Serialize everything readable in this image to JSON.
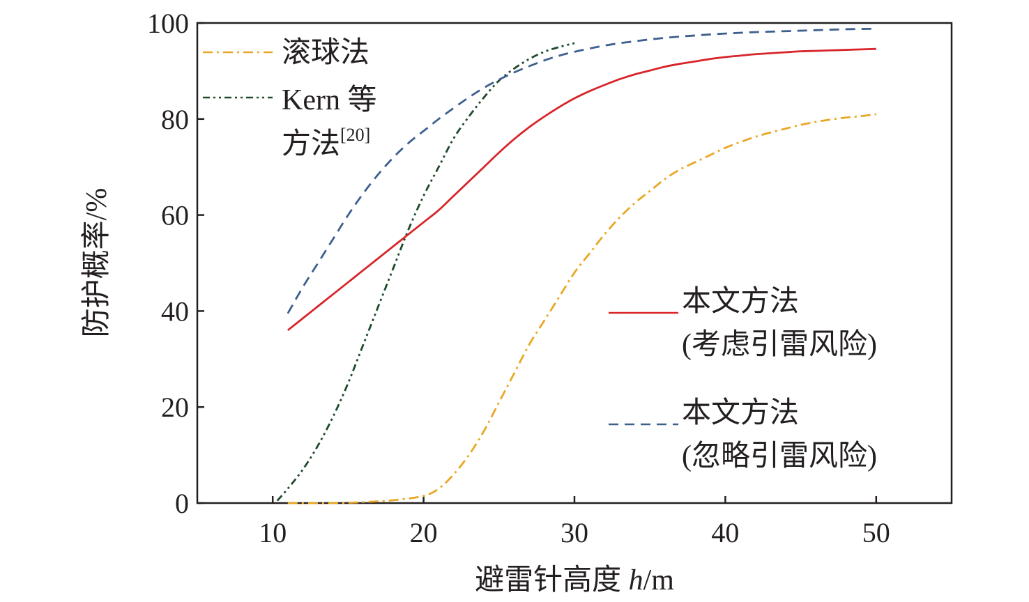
{
  "chart_data": {
    "type": "line",
    "xlabel_main": "避雷针高度 ",
    "xlabel_var": "h",
    "xlabel_unit": "/m",
    "ylabel": "防护概率/%",
    "xlim": [
      5,
      55
    ],
    "ylim": [
      0,
      100
    ],
    "xticks": [
      10,
      20,
      30,
      40,
      50
    ],
    "yticks": [
      0,
      20,
      40,
      60,
      80,
      100
    ],
    "grid": false,
    "legend": {
      "top_left": {
        "rolling": "滚球法",
        "kern_line1": "Kern 等",
        "kern_line2": "方法",
        "kern_ref": "[20]"
      },
      "right": {
        "proposed_risk_line1": "本文方法",
        "proposed_risk_line2": "(考虑引雷风险)",
        "proposed_norisk_line1": "本文方法",
        "proposed_norisk_line2": "(忽略引雷风险)"
      }
    },
    "series": [
      {
        "key": "rolling",
        "color": "#e8a825",
        "dash": "dashdot",
        "points": [
          [
            11,
            0
          ],
          [
            14,
            0
          ],
          [
            16,
            0.2
          ],
          [
            18,
            0.6
          ],
          [
            20,
            1.5
          ],
          [
            21,
            3
          ],
          [
            22,
            6
          ],
          [
            23,
            10
          ],
          [
            24,
            15
          ],
          [
            25,
            21
          ],
          [
            26,
            27
          ],
          [
            27,
            33
          ],
          [
            28,
            38
          ],
          [
            29,
            43
          ],
          [
            30,
            48
          ],
          [
            31,
            52
          ],
          [
            32,
            56
          ],
          [
            33,
            59.5
          ],
          [
            34,
            62.5
          ],
          [
            35,
            65
          ],
          [
            36,
            67.5
          ],
          [
            37,
            69.5
          ],
          [
            38,
            71
          ],
          [
            39,
            72.5
          ],
          [
            40,
            74
          ],
          [
            41,
            75.2
          ],
          [
            42,
            76.3
          ],
          [
            43,
            77.2
          ],
          [
            44,
            78
          ],
          [
            45,
            78.8
          ],
          [
            46,
            79.4
          ],
          [
            47,
            79.9
          ],
          [
            48,
            80.3
          ],
          [
            49,
            80.6
          ],
          [
            50,
            81
          ]
        ]
      },
      {
        "key": "kern",
        "color": "#1e4a2a",
        "dash": "dashdotdot",
        "points": [
          [
            10.3,
            0.5
          ],
          [
            11,
            3
          ],
          [
            12,
            7
          ],
          [
            13,
            12
          ],
          [
            14,
            18
          ],
          [
            15,
            25
          ],
          [
            16,
            33
          ],
          [
            17,
            41
          ],
          [
            18,
            49
          ],
          [
            19,
            57
          ],
          [
            20,
            64
          ],
          [
            21,
            70
          ],
          [
            22,
            76
          ],
          [
            23,
            80.5
          ],
          [
            24,
            84.5
          ],
          [
            25,
            88
          ],
          [
            26,
            90.5
          ],
          [
            27,
            92.5
          ],
          [
            28,
            94
          ],
          [
            29,
            95
          ],
          [
            30,
            95.8
          ]
        ]
      },
      {
        "key": "proposed_risk",
        "color": "#d7252a",
        "dash": "solid",
        "points": [
          [
            11,
            36
          ],
          [
            12,
            38.5
          ],
          [
            13,
            41
          ],
          [
            14,
            43.5
          ],
          [
            15,
            46
          ],
          [
            16,
            48.5
          ],
          [
            17,
            51
          ],
          [
            18,
            53.5
          ],
          [
            19,
            56
          ],
          [
            20,
            58.5
          ],
          [
            21,
            61
          ],
          [
            22,
            64
          ],
          [
            23,
            67
          ],
          [
            24,
            70
          ],
          [
            25,
            73
          ],
          [
            26,
            75.8
          ],
          [
            27,
            78.3
          ],
          [
            28,
            80.5
          ],
          [
            29,
            82.5
          ],
          [
            30,
            84.3
          ],
          [
            31,
            85.8
          ],
          [
            32,
            87.1
          ],
          [
            33,
            88.3
          ],
          [
            34,
            89.3
          ],
          [
            35,
            90.1
          ],
          [
            36,
            90.9
          ],
          [
            37,
            91.5
          ],
          [
            38,
            92
          ],
          [
            39,
            92.5
          ],
          [
            40,
            92.9
          ],
          [
            41,
            93.2
          ],
          [
            42,
            93.5
          ],
          [
            43,
            93.7
          ],
          [
            44,
            93.9
          ],
          [
            45,
            94.1
          ],
          [
            46,
            94.2
          ],
          [
            47,
            94.3
          ],
          [
            48,
            94.4
          ],
          [
            49,
            94.5
          ],
          [
            50,
            94.6
          ]
        ]
      },
      {
        "key": "proposed_norisk",
        "color": "#3d5f8e",
        "dash": "dashed",
        "points": [
          [
            11,
            39.5
          ],
          [
            12,
            45
          ],
          [
            13,
            50
          ],
          [
            14,
            55
          ],
          [
            15,
            60
          ],
          [
            16,
            64.5
          ],
          [
            17,
            68.5
          ],
          [
            18,
            72
          ],
          [
            19,
            75
          ],
          [
            20,
            77.5
          ],
          [
            21,
            80
          ],
          [
            22,
            82.3
          ],
          [
            23,
            84.5
          ],
          [
            24,
            86.5
          ],
          [
            25,
            88.2
          ],
          [
            26,
            89.7
          ],
          [
            27,
            91
          ],
          [
            28,
            92.2
          ],
          [
            29,
            93.2
          ],
          [
            30,
            94
          ],
          [
            32,
            95.3
          ],
          [
            34,
            96.2
          ],
          [
            36,
            96.9
          ],
          [
            38,
            97.4
          ],
          [
            40,
            97.8
          ],
          [
            42,
            98.1
          ],
          [
            44,
            98.3
          ],
          [
            46,
            98.5
          ],
          [
            48,
            98.7
          ],
          [
            50,
            98.8
          ]
        ]
      }
    ]
  }
}
